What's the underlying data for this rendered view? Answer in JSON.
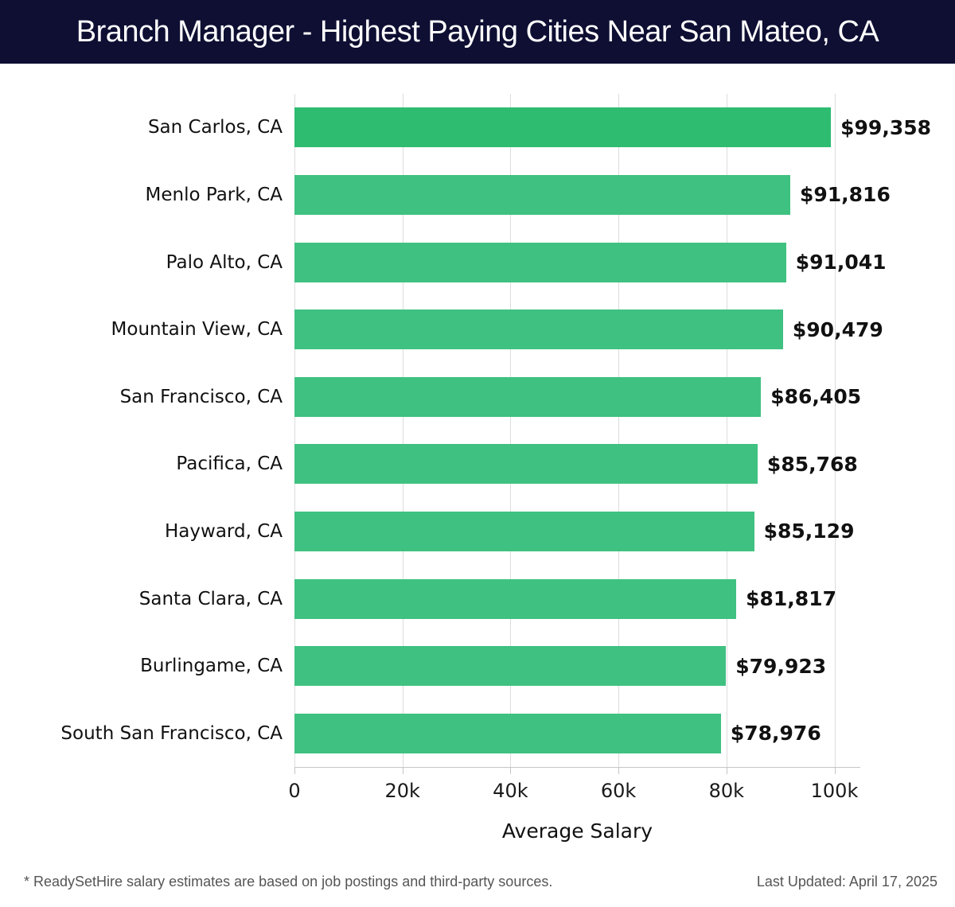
{
  "header": {
    "title": "Branch Manager - Highest Paying Cities Near San Mateo, CA"
  },
  "chart_data": {
    "type": "bar",
    "orientation": "horizontal",
    "title": "Branch Manager - Highest Paying Cities Near San Mateo, CA",
    "categories": [
      "San Carlos, CA",
      "Menlo Park, CA",
      "Palo Alto, CA",
      "Mountain View, CA",
      "San Francisco, CA",
      "Pacifica, CA",
      "Hayward, CA",
      "Santa Clara, CA",
      "Burlingame, CA",
      "South San Francisco, CA"
    ],
    "values": [
      99358,
      91816,
      91041,
      90479,
      86405,
      85768,
      85129,
      81817,
      79923,
      78976
    ],
    "value_labels": [
      "$99,358",
      "$91,816",
      "$91,041",
      "$90,479",
      "$86,405",
      "$85,768",
      "$85,129",
      "$81,817",
      "$79,923",
      "$78,976"
    ],
    "xlabel": "Average Salary",
    "x_ticks": [
      {
        "value": 0,
        "label": "0"
      },
      {
        "value": 20000,
        "label": "20k"
      },
      {
        "value": 40000,
        "label": "40k"
      },
      {
        "value": 60000,
        "label": "60k"
      },
      {
        "value": 80000,
        "label": "80k"
      },
      {
        "value": 100000,
        "label": "100k"
      }
    ],
    "xlim": [
      0,
      100000
    ],
    "grid": "vertical",
    "legend": "none"
  },
  "colors": {
    "header_bg": "#0e0f33",
    "header_text": "#ffffff",
    "bar_highlight": "#2ebc70",
    "bar_default": "#3fc181",
    "gridline": "#dcdcdc",
    "axis_line": "#c6c6c6",
    "label_text": "#111111",
    "footer_text": "#555555"
  },
  "footer": {
    "disclaimer": "* ReadySetHire salary estimates are based on job postings and third-party sources.",
    "last_updated": "Last Updated: April 17, 2025"
  }
}
